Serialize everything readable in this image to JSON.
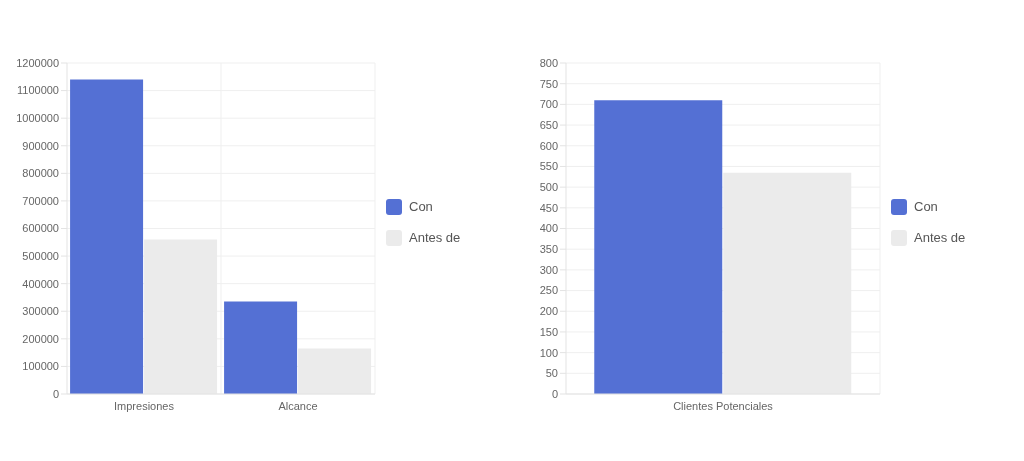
{
  "chart_data": [
    {
      "type": "bar",
      "categories": [
        "Impresiones",
        "Alcance"
      ],
      "series": [
        {
          "name": "Con",
          "color": "#5470d4",
          "values": [
            1140000,
            335000
          ]
        },
        {
          "name": "Antes de",
          "color": "#ebebeb",
          "values": [
            560000,
            165000
          ]
        }
      ],
      "ylim": [
        0,
        1200000
      ],
      "yticks": [
        0,
        100000,
        200000,
        300000,
        400000,
        500000,
        600000,
        700000,
        800000,
        900000,
        1000000,
        1100000,
        1200000
      ],
      "grid": true,
      "legend": "right"
    },
    {
      "type": "bar",
      "categories": [
        "Clientes Potenciales"
      ],
      "series": [
        {
          "name": "Con",
          "color": "#5470d4",
          "values": [
            710
          ]
        },
        {
          "name": "Antes de",
          "color": "#ebebeb",
          "values": [
            535
          ]
        }
      ],
      "ylim": [
        0,
        800
      ],
      "yticks": [
        0,
        50,
        100,
        150,
        200,
        250,
        300,
        350,
        400,
        450,
        500,
        550,
        600,
        650,
        700,
        750,
        800
      ],
      "grid": true,
      "legend": "right"
    }
  ]
}
